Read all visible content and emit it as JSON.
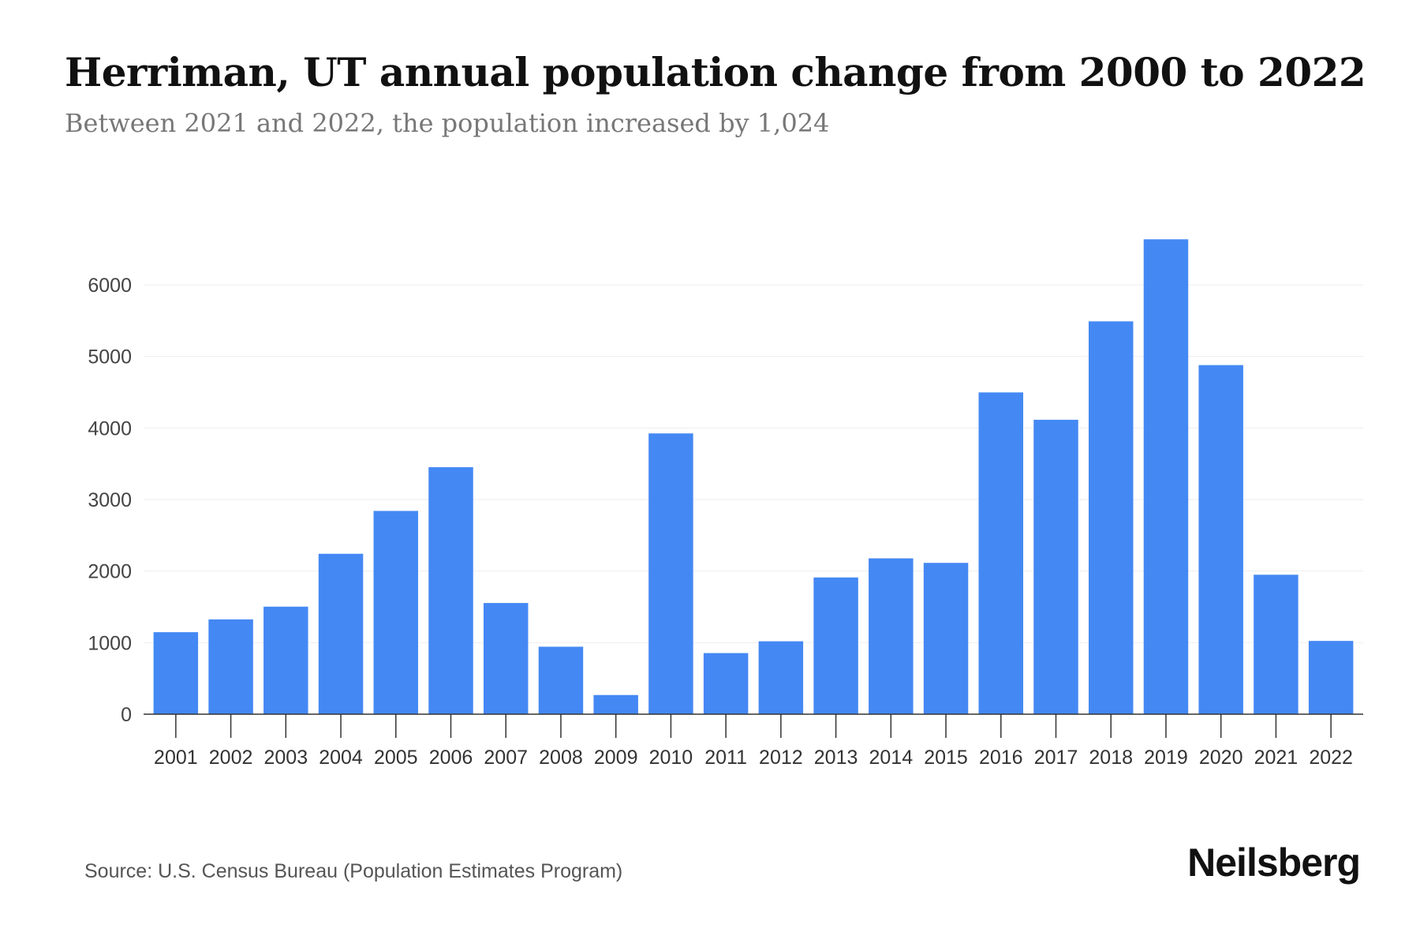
{
  "chart_data": {
    "type": "bar",
    "title": "Herriman, UT annual population change from 2000 to 2022",
    "subtitle": "Between 2021 and 2022, the population increased by 1,024",
    "categories": [
      "2001",
      "2002",
      "2003",
      "2004",
      "2005",
      "2006",
      "2007",
      "2008",
      "2009",
      "2010",
      "2011",
      "2012",
      "2013",
      "2014",
      "2015",
      "2016",
      "2017",
      "2018",
      "2019",
      "2020",
      "2021",
      "2022"
    ],
    "values": [
      1146,
      1325,
      1503,
      2242,
      2841,
      3452,
      1554,
      943,
      268,
      3924,
      854,
      1019,
      1911,
      2178,
      2115,
      4497,
      4115,
      5490,
      6637,
      4879,
      1949,
      1024
    ],
    "yticks": [
      0,
      1000,
      2000,
      3000,
      4000,
      5000,
      6000
    ],
    "ylim": [
      0,
      6800
    ],
    "xlabel": "",
    "ylabel": "",
    "grid": true,
    "bar_color": "#4488f4",
    "source": "Source: U.S. Census Bureau (Population Estimates Program)",
    "logo": "Neilsberg"
  }
}
